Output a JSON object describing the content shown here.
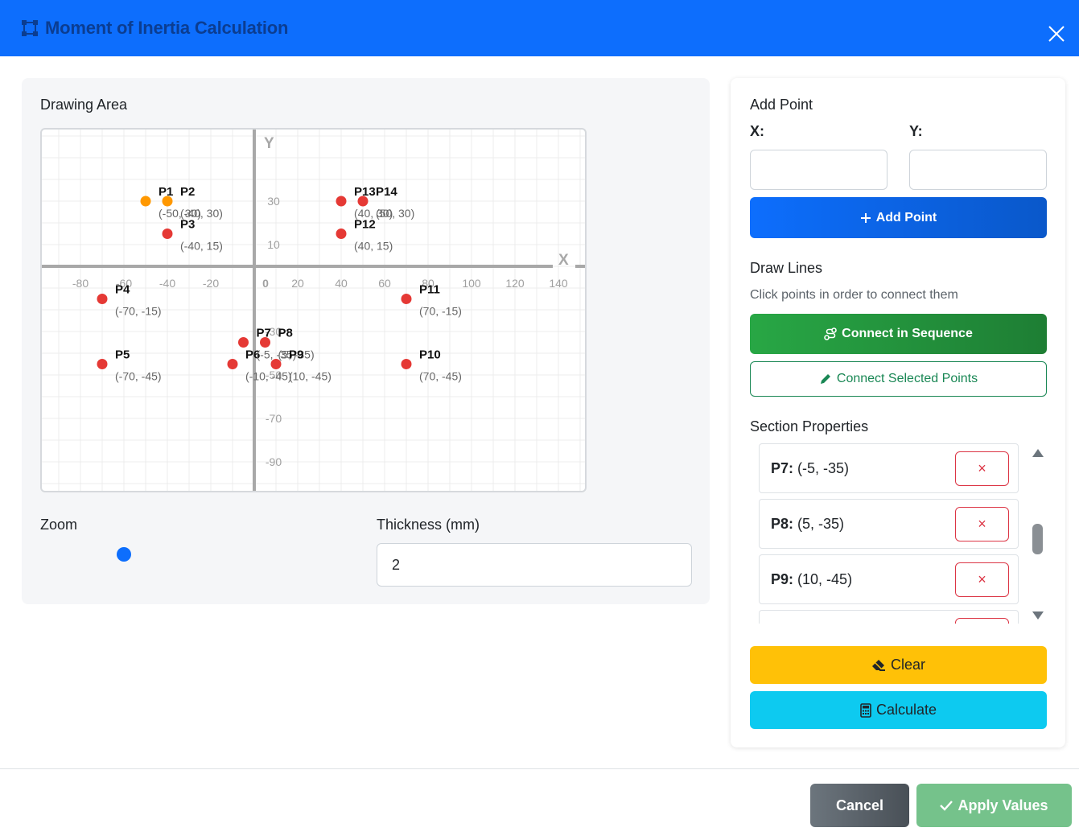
{
  "modal": {
    "title": "Moment of Inertia Calculation"
  },
  "drawing": {
    "title": "Drawing Area",
    "axis_x_label": "X",
    "axis_y_label": "Y",
    "x_ticks": [
      "-80",
      "-60",
      "-40",
      "-20",
      "0",
      "20",
      "40",
      "60",
      "80",
      "100",
      "120",
      "140"
    ],
    "y_ticks": [
      "30",
      "10",
      "-30",
      "-50",
      "-70",
      "-90"
    ],
    "points": [
      {
        "name": "P1",
        "coord": "(-50, 30)",
        "x": -50,
        "y": 30,
        "state": "selected"
      },
      {
        "name": "P2",
        "coord": "(-40, 30)",
        "x": -40,
        "y": 30,
        "state": "selected"
      },
      {
        "name": "P3",
        "coord": "(-40, 15)",
        "x": -40,
        "y": 15,
        "state": "normal"
      },
      {
        "name": "P4",
        "coord": "(-70, -15)",
        "x": -70,
        "y": -15,
        "state": "normal"
      },
      {
        "name": "P5",
        "coord": "(-70, -45)",
        "x": -70,
        "y": -45,
        "state": "normal"
      },
      {
        "name": "P6",
        "coord": "(-10, -45)",
        "x": -10,
        "y": -45,
        "state": "normal"
      },
      {
        "name": "P7",
        "coord": "(-5, -35)",
        "x": -5,
        "y": -35,
        "state": "normal"
      },
      {
        "name": "P8",
        "coord": "(5, -35)",
        "x": 5,
        "y": -35,
        "state": "normal"
      },
      {
        "name": "P9",
        "coord": "(10, -45)",
        "x": 10,
        "y": -45,
        "state": "normal"
      },
      {
        "name": "P10",
        "coord": "(70, -45)",
        "x": 70,
        "y": -45,
        "state": "normal"
      },
      {
        "name": "P11",
        "coord": "(70, -15)",
        "x": 70,
        "y": -15,
        "state": "normal"
      },
      {
        "name": "P12",
        "coord": "(40, 15)",
        "x": 40,
        "y": 15,
        "state": "normal"
      },
      {
        "name": "P13",
        "coord": "(40, 30)",
        "x": 40,
        "y": 30,
        "state": "normal"
      },
      {
        "name": "P14",
        "coord": "(50, 30)",
        "x": 50,
        "y": 30,
        "state": "normal"
      }
    ],
    "colors": {
      "point": "#e53935",
      "selected": "#ff9800",
      "axis": "#a8a8a8",
      "grid": "#ececec"
    }
  },
  "controls": {
    "zoom_label": "Zoom",
    "zoom_value": 0.2,
    "thickness_label": "Thickness (mm)",
    "thickness_value": "2"
  },
  "add_point": {
    "title": "Add Point",
    "x_label": "X:",
    "y_label": "Y:",
    "x_value": "",
    "y_value": "",
    "button": "Add Point"
  },
  "draw_lines": {
    "title": "Draw Lines",
    "hint": "Click points in order to connect them",
    "sequence_button": "Connect in Sequence",
    "selected_button": "Connect Selected Points"
  },
  "section_properties": {
    "title": "Section Properties",
    "items": [
      {
        "name": "P7:",
        "coord": "(-5, -35)",
        "delete": "×"
      },
      {
        "name": "P8:",
        "coord": "(5, -35)",
        "delete": "×"
      },
      {
        "name": "P9:",
        "coord": "(10, -45)",
        "delete": "×"
      },
      {
        "name": "",
        "coord": "",
        "delete": ""
      }
    ]
  },
  "actions": {
    "clear": "Clear",
    "calculate": "Calculate"
  },
  "footer": {
    "cancel": "Cancel",
    "apply": "Apply Values"
  }
}
